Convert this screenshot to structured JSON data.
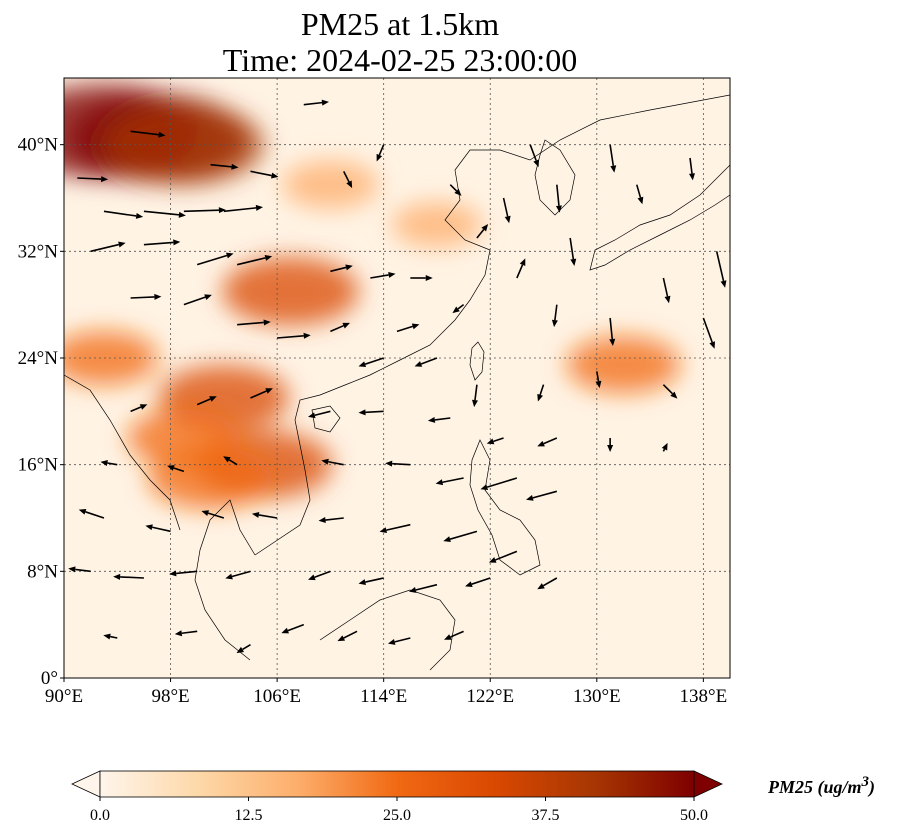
{
  "title": {
    "line1": "PM25 at 1.5km",
    "line2": "Time: 2024-02-25 23:00:00"
  },
  "map": {
    "lon_range": [
      90,
      140
    ],
    "lat_range": [
      0,
      45
    ],
    "lon_ticks": [
      {
        "value": 90,
        "label": "90°E"
      },
      {
        "value": 98,
        "label": "98°E"
      },
      {
        "value": 106,
        "label": "106°E"
      },
      {
        "value": 114,
        "label": "114°E"
      },
      {
        "value": 122,
        "label": "122°E"
      },
      {
        "value": 130,
        "label": "130°E"
      },
      {
        "value": 138,
        "label": "138°E"
      }
    ],
    "lat_ticks": [
      {
        "value": 0,
        "label": "0°"
      },
      {
        "value": 8,
        "label": "8°N"
      },
      {
        "value": 16,
        "label": "16°N"
      },
      {
        "value": 24,
        "label": "24°N"
      },
      {
        "value": 32,
        "label": "32°N"
      },
      {
        "value": 40,
        "label": "40°N"
      }
    ],
    "gridlines": true
  },
  "colorbar": {
    "min": 0,
    "max": 50,
    "extend": "both",
    "colors": [
      "#fff5eb",
      "#fdd8a8",
      "#fdae6b",
      "#f16913",
      "#d94801",
      "#a63603",
      "#7f0000"
    ],
    "ticks": [
      {
        "value": 0,
        "label": "0.0"
      },
      {
        "value": 12.5,
        "label": "12.5"
      },
      {
        "value": 25,
        "label": "25.0"
      },
      {
        "value": 37.5,
        "label": "37.5"
      },
      {
        "value": 50,
        "label": "50.0"
      }
    ],
    "units_label": "PM25 (ug/m",
    "units_sup": "3",
    "units_close": ")"
  },
  "pm25_hotspots": [
    {
      "lon": 93,
      "lat": 41,
      "value": 50
    },
    {
      "lon": 97,
      "lat": 40.5,
      "value": 46
    },
    {
      "lon": 99,
      "lat": 40,
      "value": 40
    },
    {
      "lon": 107,
      "lat": 29,
      "value": 32
    },
    {
      "lon": 102,
      "lat": 21,
      "value": 30
    },
    {
      "lon": 105,
      "lat": 16,
      "value": 32
    },
    {
      "lon": 101,
      "lat": 15,
      "value": 28
    },
    {
      "lon": 99,
      "lat": 18,
      "value": 24
    },
    {
      "lon": 93,
      "lat": 24,
      "value": 22
    },
    {
      "lon": 132,
      "lat": 23.5,
      "value": 24
    },
    {
      "lon": 110,
      "lat": 37,
      "value": 18
    },
    {
      "lon": 118,
      "lat": 34,
      "value": 16
    }
  ],
  "wind_vectors": [
    {
      "lon": 91,
      "lat": 37.5,
      "u": 2.2,
      "v": -0.1
    },
    {
      "lon": 93,
      "lat": 35,
      "u": 2.8,
      "v": -0.4
    },
    {
      "lon": 96,
      "lat": 35,
      "u": 3.0,
      "v": -0.3
    },
    {
      "lon": 99,
      "lat": 35,
      "u": 3.0,
      "v": 0.1
    },
    {
      "lon": 102,
      "lat": 35,
      "u": 2.8,
      "v": 0.3
    },
    {
      "lon": 92,
      "lat": 32,
      "u": 2.5,
      "v": 0.6
    },
    {
      "lon": 96,
      "lat": 32.5,
      "u": 2.6,
      "v": 0.2
    },
    {
      "lon": 100,
      "lat": 31,
      "u": 2.6,
      "v": 0.8
    },
    {
      "lon": 103,
      "lat": 31,
      "u": 2.5,
      "v": 0.6
    },
    {
      "lon": 95,
      "lat": 28.5,
      "u": 2.2,
      "v": 0.1
    },
    {
      "lon": 99,
      "lat": 28,
      "u": 2.0,
      "v": 0.7
    },
    {
      "lon": 103,
      "lat": 26.5,
      "u": 2.4,
      "v": 0.2
    },
    {
      "lon": 106,
      "lat": 25.5,
      "u": 2.4,
      "v": 0.2
    },
    {
      "lon": 95,
      "lat": 41,
      "u": 2.5,
      "v": -0.3
    },
    {
      "lon": 101,
      "lat": 38.5,
      "u": 2.0,
      "v": -0.2
    },
    {
      "lon": 104,
      "lat": 38,
      "u": 2.0,
      "v": -0.4
    },
    {
      "lon": 108,
      "lat": 43,
      "u": 1.8,
      "v": 0.2
    },
    {
      "lon": 111,
      "lat": 38,
      "u": 0.6,
      "v": -1.2
    },
    {
      "lon": 114,
      "lat": 40,
      "u": -0.5,
      "v": -1.2
    },
    {
      "lon": 110,
      "lat": 30.5,
      "u": 1.6,
      "v": 0.4
    },
    {
      "lon": 113,
      "lat": 30,
      "u": 1.8,
      "v": 0.3
    },
    {
      "lon": 116,
      "lat": 30,
      "u": 1.6,
      "v": 0.0
    },
    {
      "lon": 110,
      "lat": 26,
      "u": 1.4,
      "v": 0.6
    },
    {
      "lon": 115,
      "lat": 26,
      "u": 1.6,
      "v": 0.5
    },
    {
      "lon": 119,
      "lat": 37,
      "u": 0.8,
      "v": -0.8
    },
    {
      "lon": 120,
      "lat": 28,
      "u": -0.8,
      "v": -0.6
    },
    {
      "lon": 121,
      "lat": 33,
      "u": 0.8,
      "v": 1.0
    },
    {
      "lon": 123,
      "lat": 36,
      "u": 0.4,
      "v": -1.8
    },
    {
      "lon": 125,
      "lat": 40,
      "u": 0.6,
      "v": -1.6
    },
    {
      "lon": 127,
      "lat": 37,
      "u": 0.2,
      "v": -2.0
    },
    {
      "lon": 128,
      "lat": 33,
      "u": 0.3,
      "v": -2.0
    },
    {
      "lon": 131,
      "lat": 40,
      "u": 0.3,
      "v": -2.0
    },
    {
      "lon": 133,
      "lat": 37,
      "u": 0.4,
      "v": -1.4
    },
    {
      "lon": 137,
      "lat": 39,
      "u": 0.2,
      "v": -1.6
    },
    {
      "lon": 139,
      "lat": 32,
      "u": 0.6,
      "v": -2.6
    },
    {
      "lon": 135,
      "lat": 30,
      "u": 0.4,
      "v": -1.8
    },
    {
      "lon": 131,
      "lat": 27,
      "u": 0.2,
      "v": -2.0
    },
    {
      "lon": 138,
      "lat": 27,
      "u": 0.8,
      "v": -2.2
    },
    {
      "lon": 127,
      "lat": 28,
      "u": -0.2,
      "v": -1.6
    },
    {
      "lon": 124,
      "lat": 30,
      "u": 0.6,
      "v": 1.4
    },
    {
      "lon": 135,
      "lat": 22,
      "u": 1.0,
      "v": -1.0
    },
    {
      "lon": 130,
      "lat": 23,
      "u": 0.2,
      "v": -1.2
    },
    {
      "lon": 126,
      "lat": 22,
      "u": -0.4,
      "v": -1.2
    },
    {
      "lon": 121,
      "lat": 22,
      "u": -0.2,
      "v": -1.6
    },
    {
      "lon": 123,
      "lat": 18,
      "u": -1.2,
      "v": -0.4
    },
    {
      "lon": 127,
      "lat": 18,
      "u": -1.4,
      "v": -0.6
    },
    {
      "lon": 131,
      "lat": 18,
      "u": 0.0,
      "v": -1.0
    },
    {
      "lon": 135,
      "lat": 17,
      "u": 0.3,
      "v": 0.6
    },
    {
      "lon": 119,
      "lat": 19.5,
      "u": -1.6,
      "v": -0.2
    },
    {
      "lon": 114,
      "lat": 20,
      "u": -1.8,
      "v": -0.1
    },
    {
      "lon": 110,
      "lat": 20,
      "u": -1.6,
      "v": -0.4
    },
    {
      "lon": 114,
      "lat": 24,
      "u": -1.8,
      "v": -0.6
    },
    {
      "lon": 118,
      "lat": 24,
      "u": -1.6,
      "v": -0.6
    },
    {
      "lon": 111,
      "lat": 16,
      "u": -1.6,
      "v": 0.3
    },
    {
      "lon": 116,
      "lat": 16,
      "u": -1.8,
      "v": 0.1
    },
    {
      "lon": 120,
      "lat": 15,
      "u": -2.0,
      "v": -0.4
    },
    {
      "lon": 124,
      "lat": 15,
      "u": -2.6,
      "v": -0.8
    },
    {
      "lon": 127,
      "lat": 14,
      "u": -2.2,
      "v": -0.6
    },
    {
      "lon": 111,
      "lat": 12,
      "u": -1.8,
      "v": -0.2
    },
    {
      "lon": 116,
      "lat": 11.5,
      "u": -2.2,
      "v": -0.5
    },
    {
      "lon": 121,
      "lat": 11,
      "u": -2.4,
      "v": -0.7
    },
    {
      "lon": 124,
      "lat": 9.5,
      "u": -2.0,
      "v": -0.8
    },
    {
      "lon": 110,
      "lat": 8,
      "u": -1.6,
      "v": -0.6
    },
    {
      "lon": 114,
      "lat": 7.5,
      "u": -1.8,
      "v": -0.4
    },
    {
      "lon": 118,
      "lat": 7,
      "u": -2.0,
      "v": -0.5
    },
    {
      "lon": 122,
      "lat": 7.5,
      "u": -1.8,
      "v": -0.6
    },
    {
      "lon": 127,
      "lat": 7.5,
      "u": -1.4,
      "v": -0.8
    },
    {
      "lon": 108,
      "lat": 4,
      "u": -1.6,
      "v": -0.6
    },
    {
      "lon": 112,
      "lat": 3.5,
      "u": -1.4,
      "v": -0.7
    },
    {
      "lon": 116,
      "lat": 3,
      "u": -1.6,
      "v": -0.4
    },
    {
      "lon": 120,
      "lat": 3.5,
      "u": -1.4,
      "v": -0.6
    },
    {
      "lon": 104,
      "lat": 8,
      "u": -1.8,
      "v": -0.5
    },
    {
      "lon": 100,
      "lat": 8,
      "u": -2.0,
      "v": -0.2
    },
    {
      "lon": 96,
      "lat": 7.5,
      "u": -2.2,
      "v": 0.1
    },
    {
      "lon": 92,
      "lat": 8,
      "u": -1.6,
      "v": 0.2
    },
    {
      "lon": 93,
      "lat": 12,
      "u": -1.8,
      "v": 0.6
    },
    {
      "lon": 98,
      "lat": 11,
      "u": -1.8,
      "v": 0.4
    },
    {
      "lon": 102,
      "lat": 12,
      "u": -1.6,
      "v": 0.5
    },
    {
      "lon": 106,
      "lat": 12,
      "u": -1.8,
      "v": 0.3
    },
    {
      "lon": 94,
      "lat": 16,
      "u": -1.2,
      "v": 0.2
    },
    {
      "lon": 99,
      "lat": 15.5,
      "u": -1.2,
      "v": 0.4
    },
    {
      "lon": 103,
      "lat": 16,
      "u": -1.0,
      "v": 0.6
    },
    {
      "lon": 95,
      "lat": 20,
      "u": 1.2,
      "v": 0.5
    },
    {
      "lon": 100,
      "lat": 20.5,
      "u": 1.4,
      "v": 0.6
    },
    {
      "lon": 104,
      "lat": 21,
      "u": 1.6,
      "v": 0.7
    },
    {
      "lon": 94,
      "lat": 3,
      "u": -1.0,
      "v": 0.2
    },
    {
      "lon": 100,
      "lat": 3.5,
      "u": -1.6,
      "v": -0.2
    },
    {
      "lon": 104,
      "lat": 2.5,
      "u": -1.0,
      "v": -0.6
    }
  ]
}
